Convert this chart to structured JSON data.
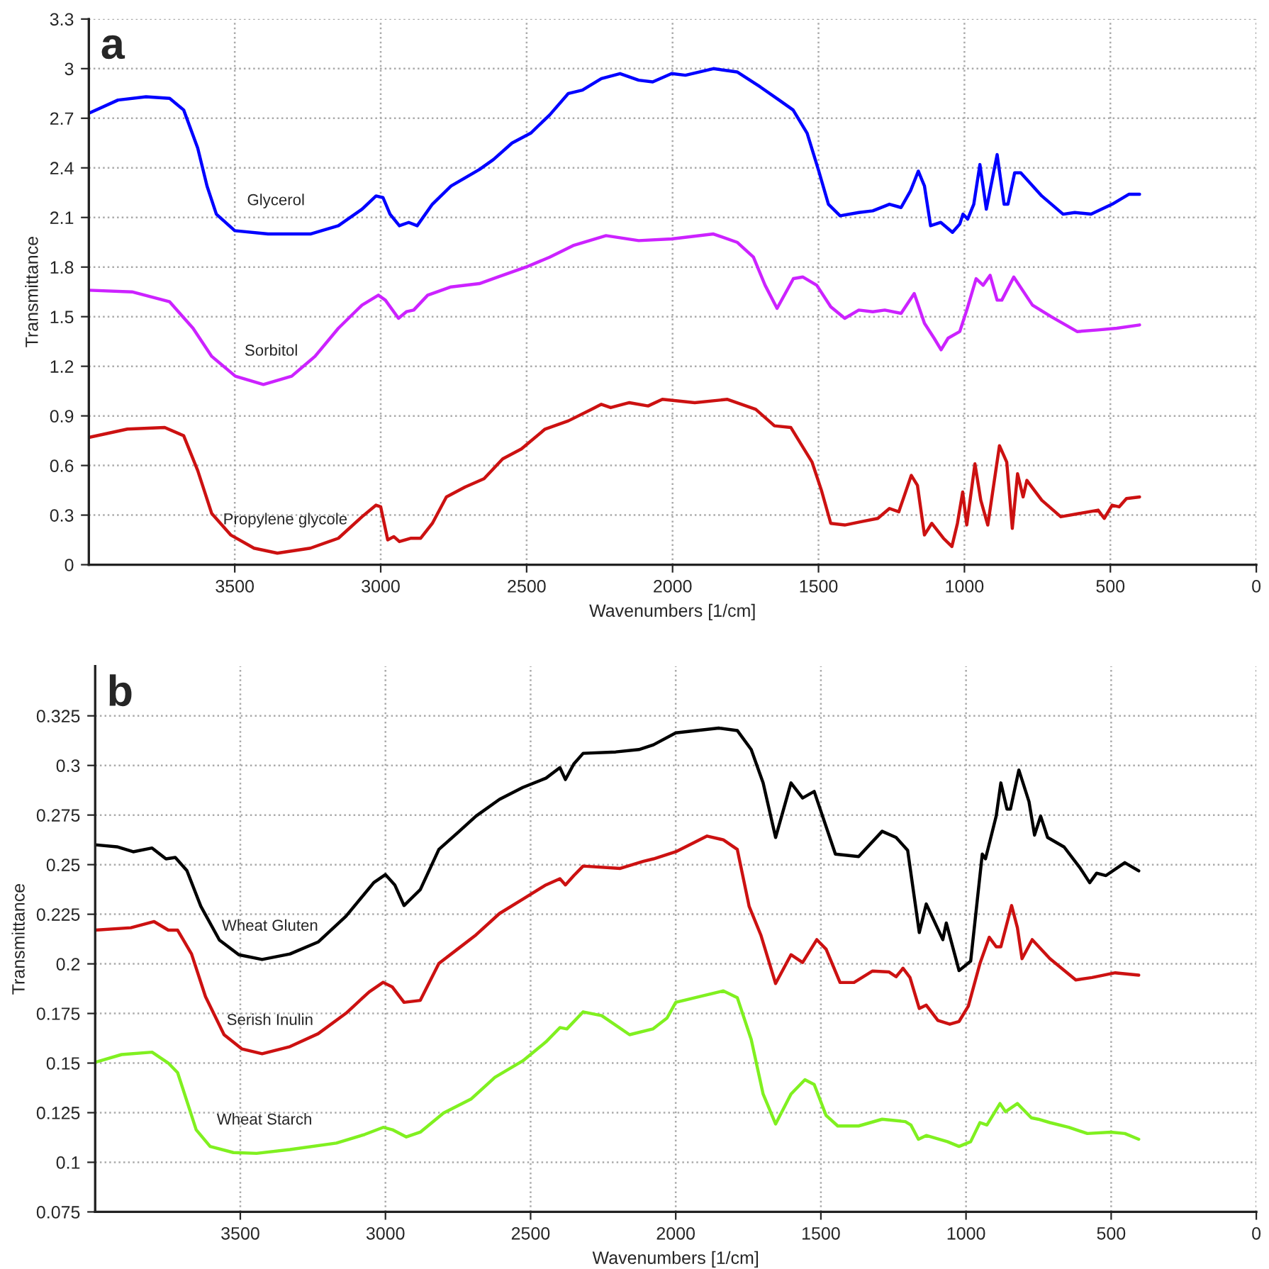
{
  "chart_data": [
    {
      "type": "line",
      "title": "a",
      "xlabel": "Wavenumbers [1/cm]",
      "ylabel": "Transmittance",
      "xlim": [
        4000,
        0
      ],
      "xticks": [
        3500,
        3000,
        2500,
        2000,
        1500,
        1000,
        500,
        0
      ],
      "ylim": [
        0,
        3.3
      ],
      "yticks": [
        0,
        0.3,
        0.6,
        0.9,
        1.2,
        1.5,
        1.8,
        2.1,
        2.4,
        2.7,
        3,
        3.3
      ],
      "grid": true,
      "series": [
        {
          "name": "Glycerol",
          "color": "#0000ff",
          "x": [
            4000,
            3900,
            3804,
            3723,
            3675,
            3627,
            3595,
            3563,
            3500,
            3386,
            3241,
            3145,
            3064,
            3016,
            2992,
            2968,
            2936,
            2904,
            2875,
            2823,
            2759,
            2662,
            2614,
            2550,
            2486,
            2421,
            2357,
            2309,
            2244,
            2180,
            2116,
            2068,
            2003,
            1956,
            1860,
            1779,
            1700,
            1635,
            1587,
            1539,
            1499,
            1466,
            1426,
            1362,
            1314,
            1257,
            1217,
            1185,
            1158,
            1137,
            1116,
            1081,
            1041,
            1016,
            1005,
            989,
            968,
            947,
            925,
            888,
            864,
            851,
            828,
            807,
            735,
            662,
            622,
            566,
            494,
            437,
            400
          ],
          "values": [
            2.73,
            2.81,
            2.83,
            2.82,
            2.75,
            2.52,
            2.29,
            2.12,
            2.02,
            2.0,
            2.0,
            2.05,
            2.15,
            2.23,
            2.22,
            2.12,
            2.05,
            2.07,
            2.05,
            2.18,
            2.29,
            2.39,
            2.45,
            2.55,
            2.61,
            2.72,
            2.85,
            2.87,
            2.94,
            2.97,
            2.93,
            2.92,
            2.97,
            2.96,
            3.0,
            2.98,
            2.89,
            2.81,
            2.75,
            2.61,
            2.38,
            2.18,
            2.11,
            2.13,
            2.14,
            2.18,
            2.16,
            2.26,
            2.38,
            2.29,
            2.05,
            2.07,
            2.01,
            2.06,
            2.12,
            2.09,
            2.18,
            2.42,
            2.15,
            2.48,
            2.18,
            2.18,
            2.37,
            2.37,
            2.23,
            2.12,
            2.13,
            2.12,
            2.18,
            2.24,
            2.24
          ]
        },
        {
          "name": "Sorbitol",
          "color": "#cc22ff",
          "x": [
            4000,
            3852,
            3723,
            3643,
            3579,
            3498,
            3402,
            3305,
            3225,
            3145,
            3064,
            3008,
            2984,
            2939,
            2912,
            2887,
            2839,
            2759,
            2662,
            2598,
            2502,
            2421,
            2341,
            2228,
            2116,
            2003,
            1860,
            1779,
            1723,
            1683,
            1642,
            1586,
            1554,
            1506,
            1458,
            1410,
            1362,
            1314,
            1273,
            1217,
            1172,
            1137,
            1104,
            1080,
            1056,
            1016,
            992,
            960,
            936,
            912,
            888,
            872,
            831,
            767,
            703,
            614,
            542,
            478,
            400
          ],
          "values": [
            1.66,
            1.65,
            1.59,
            1.43,
            1.26,
            1.14,
            1.09,
            1.14,
            1.26,
            1.43,
            1.57,
            1.63,
            1.6,
            1.49,
            1.53,
            1.54,
            1.63,
            1.68,
            1.7,
            1.74,
            1.8,
            1.86,
            1.93,
            1.99,
            1.96,
            1.97,
            2.0,
            1.95,
            1.86,
            1.69,
            1.55,
            1.73,
            1.74,
            1.69,
            1.56,
            1.49,
            1.54,
            1.53,
            1.54,
            1.52,
            1.64,
            1.46,
            1.37,
            1.3,
            1.37,
            1.41,
            1.54,
            1.73,
            1.69,
            1.75,
            1.6,
            1.6,
            1.74,
            1.57,
            1.5,
            1.41,
            1.42,
            1.43,
            1.45
          ]
        },
        {
          "name": "Propylene glycole",
          "color": "#cc1111",
          "x": [
            4000,
            3868,
            3740,
            3675,
            3627,
            3579,
            3514,
            3434,
            3354,
            3241,
            3145,
            3064,
            3016,
            3000,
            2976,
            2955,
            2936,
            2896,
            2863,
            2823,
            2775,
            2711,
            2646,
            2582,
            2518,
            2437,
            2357,
            2277,
            2244,
            2212,
            2148,
            2084,
            2035,
            1924,
            1812,
            1715,
            1651,
            1595,
            1522,
            1490,
            1458,
            1410,
            1354,
            1297,
            1257,
            1225,
            1182,
            1161,
            1137,
            1112,
            1072,
            1043,
            1024,
            1006,
            992,
            964,
            944,
            920,
            880,
            855,
            836,
            818,
            799,
            786,
            735,
            670,
            606,
            542,
            521,
            494,
            470,
            445,
            400
          ],
          "values": [
            0.77,
            0.82,
            0.83,
            0.78,
            0.57,
            0.31,
            0.18,
            0.1,
            0.07,
            0.1,
            0.16,
            0.29,
            0.36,
            0.35,
            0.15,
            0.17,
            0.14,
            0.16,
            0.16,
            0.25,
            0.41,
            0.47,
            0.52,
            0.64,
            0.7,
            0.82,
            0.87,
            0.94,
            0.97,
            0.95,
            0.98,
            0.96,
            1.0,
            0.98,
            1.0,
            0.94,
            0.84,
            0.83,
            0.62,
            0.45,
            0.25,
            0.24,
            0.26,
            0.28,
            0.34,
            0.32,
            0.54,
            0.48,
            0.18,
            0.25,
            0.16,
            0.11,
            0.25,
            0.44,
            0.24,
            0.61,
            0.39,
            0.24,
            0.72,
            0.62,
            0.22,
            0.55,
            0.41,
            0.51,
            0.39,
            0.29,
            0.31,
            0.33,
            0.28,
            0.36,
            0.35,
            0.4,
            0.41
          ]
        }
      ]
    },
    {
      "type": "line",
      "title": "b",
      "xlabel": "Wavenumbers [1/cm]",
      "ylabel": "Transmittance",
      "xlim": [
        4000,
        0
      ],
      "xticks": [
        3500,
        3000,
        2500,
        2000,
        1500,
        1000,
        500,
        0
      ],
      "ylim": [
        0.075,
        0.35
      ],
      "yticks": [
        0.075,
        0.1,
        0.125,
        0.15,
        0.175,
        0.2,
        0.225,
        0.25,
        0.275,
        0.3,
        0.325
      ],
      "grid": true,
      "series": [
        {
          "name": "Wheat Gluten",
          "color": "#000000",
          "x": [
            4000,
            3925,
            3869,
            3804,
            3756,
            3724,
            3684,
            3636,
            3572,
            3505,
            3425,
            3329,
            3232,
            3136,
            3040,
            3000,
            2968,
            2936,
            2880,
            2816,
            2752,
            2688,
            2607,
            2527,
            2447,
            2399,
            2380,
            2351,
            2319,
            2207,
            2127,
            2077,
            2000,
            1852,
            1788,
            1740,
            1699,
            1656,
            1603,
            1563,
            1523,
            1450,
            1370,
            1289,
            1241,
            1201,
            1161,
            1137,
            1080,
            1068,
            1024,
            984,
            944,
            933,
            896,
            880,
            859,
            847,
            818,
            783,
            764,
            743,
            719,
            662,
            606,
            574,
            550,
            518,
            453,
            405
          ],
          "values": [
            0.26,
            0.259,
            0.2565,
            0.2584,
            0.2529,
            0.2536,
            0.247,
            0.229,
            0.212,
            0.2046,
            0.2022,
            0.205,
            0.211,
            0.224,
            0.241,
            0.245,
            0.2398,
            0.2294,
            0.2374,
            0.2577,
            0.266,
            0.2745,
            0.2829,
            0.2889,
            0.2936,
            0.2989,
            0.2929,
            0.3008,
            0.3061,
            0.3068,
            0.308,
            0.3104,
            0.3164,
            0.3188,
            0.3176,
            0.308,
            0.2912,
            0.2637,
            0.2912,
            0.2836,
            0.2869,
            0.2553,
            0.2541,
            0.2668,
            0.2637,
            0.2572,
            0.2158,
            0.2302,
            0.2122,
            0.2206,
            0.1966,
            0.2014,
            0.2553,
            0.2529,
            0.2745,
            0.2912,
            0.278,
            0.278,
            0.2977,
            0.2817,
            0.2649,
            0.2745,
            0.2637,
            0.2589,
            0.2481,
            0.2409,
            0.2457,
            0.2445,
            0.251,
            0.2469
          ]
        },
        {
          "name": "Serish Inulin",
          "color": "#cc1111",
          "x": [
            4000,
            3877,
            3797,
            3748,
            3716,
            3668,
            3620,
            3556,
            3494,
            3425,
            3329,
            3232,
            3136,
            3056,
            3008,
            2976,
            2936,
            2880,
            2816,
            2752,
            2688,
            2607,
            2527,
            2447,
            2399,
            2380,
            2351,
            2319,
            2191,
            2111,
            2077,
            2000,
            1892,
            1836,
            1788,
            1747,
            1707,
            1656,
            1603,
            1563,
            1514,
            1482,
            1434,
            1386,
            1322,
            1265,
            1241,
            1217,
            1193,
            1161,
            1137,
            1097,
            1056,
            1024,
            992,
            952,
            920,
            896,
            880,
            843,
            823,
            807,
            772,
            711,
            622,
            566,
            486,
            405
          ],
          "values": [
            0.217,
            0.2182,
            0.2213,
            0.217,
            0.217,
            0.205,
            0.1835,
            0.1643,
            0.1571,
            0.1547,
            0.1583,
            0.1648,
            0.1751,
            0.1859,
            0.1907,
            0.1883,
            0.1806,
            0.1816,
            0.2002,
            0.2074,
            0.2146,
            0.2254,
            0.2326,
            0.2398,
            0.2429,
            0.2398,
            0.2445,
            0.2493,
            0.2481,
            0.2517,
            0.2529,
            0.2565,
            0.2644,
            0.2625,
            0.2577,
            0.2289,
            0.2146,
            0.1901,
            0.2046,
            0.2007,
            0.2122,
            0.2074,
            0.1906,
            0.1906,
            0.1964,
            0.1959,
            0.1935,
            0.1978,
            0.1931,
            0.1775,
            0.1792,
            0.1715,
            0.1696,
            0.171,
            0.1787,
            0.2002,
            0.2134,
            0.2086,
            0.2086,
            0.2294,
            0.2182,
            0.2026,
            0.2122,
            0.2026,
            0.1919,
            0.1931,
            0.1955,
            0.1943
          ]
        },
        {
          "name": "Wheat Starch",
          "color": "#80f020",
          "x": [
            4000,
            3909,
            3804,
            3748,
            3716,
            3684,
            3652,
            3604,
            3524,
            3444,
            3329,
            3169,
            3072,
            3008,
            2976,
            2928,
            2880,
            2800,
            2704,
            2623,
            2527,
            2447,
            2399,
            2375,
            2319,
            2255,
            2159,
            2079,
            2030,
            2000,
            1932,
            1836,
            1788,
            1740,
            1699,
            1656,
            1603,
            1555,
            1523,
            1482,
            1442,
            1370,
            1289,
            1209,
            1190,
            1164,
            1137,
            1064,
            1024,
            984,
            952,
            928,
            883,
            864,
            823,
            775,
            751,
            711,
            646,
            582,
            501,
            453,
            405
          ],
          "values": [
            0.1504,
            0.1543,
            0.1555,
            0.15,
            0.1452,
            0.1308,
            0.1164,
            0.108,
            0.1049,
            0.1045,
            0.1064,
            0.1097,
            0.114,
            0.1176,
            0.1164,
            0.1128,
            0.1152,
            0.1248,
            0.132,
            0.1428,
            0.1511,
            0.1607,
            0.1679,
            0.1672,
            0.1758,
            0.1739,
            0.1643,
            0.1672,
            0.1727,
            0.1806,
            0.183,
            0.1864,
            0.183,
            0.1619,
            0.1344,
            0.1193,
            0.1344,
            0.1416,
            0.1392,
            0.1236,
            0.1183,
            0.1183,
            0.1217,
            0.1205,
            0.1188,
            0.1116,
            0.1135,
            0.1104,
            0.108,
            0.1104,
            0.12,
            0.1188,
            0.1296,
            0.1255,
            0.1296,
            0.1224,
            0.1217,
            0.12,
            0.1176,
            0.1145,
            0.1152,
            0.1145,
            0.1116
          ]
        }
      ]
    }
  ]
}
